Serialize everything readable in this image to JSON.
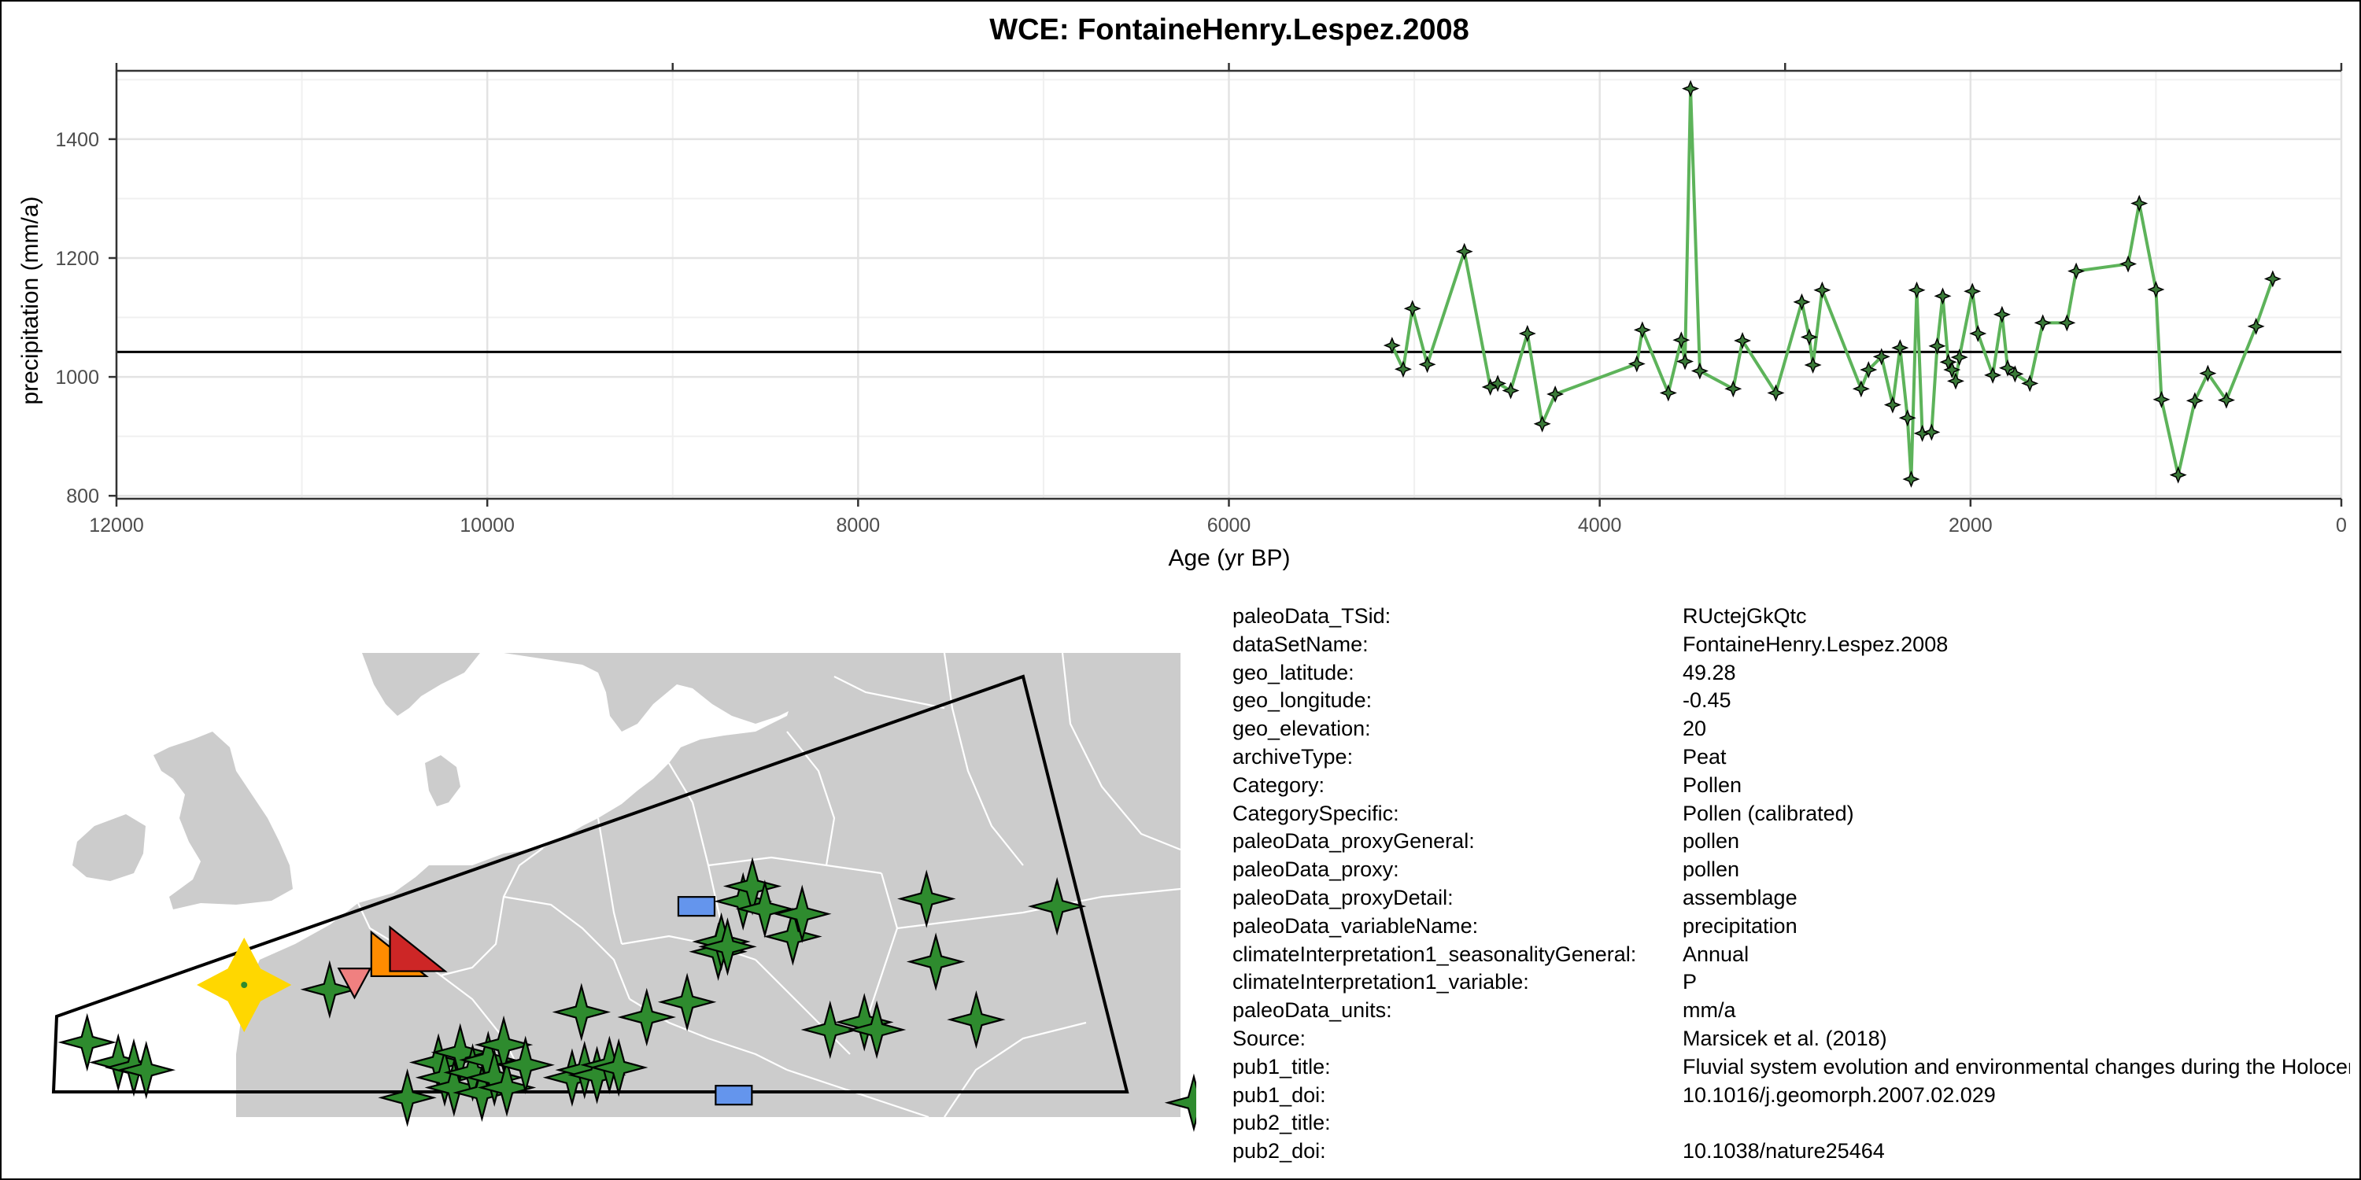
{
  "colors": {
    "series_line": "#5db35a",
    "point_fill": "#3a7a38",
    "land": "#cccccc",
    "border": "#ffffff",
    "green_star": "#2e8b2e",
    "yellow_star": "#ffd700",
    "orange": "#ff8c00",
    "red_tri": "#cd2626",
    "pink_tri": "#f08080",
    "blue_rect": "#6495ed"
  },
  "chart_data": {
    "type": "line",
    "title": "WCE: FontaineHenry.Lespez.2008",
    "xlabel": "Age (yr BP)",
    "ylabel": "precipitation (mm/a)",
    "xlim": [
      12000,
      0
    ],
    "ylim": [
      795,
      1515
    ],
    "x_reversed": true,
    "grid": true,
    "x_ticks": [
      12000,
      10000,
      8000,
      6000,
      4000,
      2000,
      0
    ],
    "x_tick_labels": [
      "12000",
      "10000",
      "8000",
      "6000",
      "4000",
      "2000",
      "0"
    ],
    "y_ticks": [
      800,
      1000,
      1200,
      1400
    ],
    "y_tick_labels": [
      "800",
      "1000",
      "1200",
      "1400"
    ],
    "mean_line": 1042,
    "series": [
      {
        "values": [
          {
            "x": 5120,
            "y": 1053
          },
          {
            "x": 5060,
            "y": 1013
          },
          {
            "x": 5010,
            "y": 1115
          },
          {
            "x": 4930,
            "y": 1021
          },
          {
            "x": 4730,
            "y": 1211
          },
          {
            "x": 4590,
            "y": 983
          },
          {
            "x": 4550,
            "y": 989
          },
          {
            "x": 4480,
            "y": 977
          },
          {
            "x": 4390,
            "y": 1073
          },
          {
            "x": 4310,
            "y": 921
          },
          {
            "x": 4240,
            "y": 971
          },
          {
            "x": 3800,
            "y": 1022
          },
          {
            "x": 3770,
            "y": 1079
          },
          {
            "x": 3630,
            "y": 973
          },
          {
            "x": 3560,
            "y": 1062
          },
          {
            "x": 3540,
            "y": 1026
          },
          {
            "x": 3510,
            "y": 1485
          },
          {
            "x": 3460,
            "y": 1010
          },
          {
            "x": 3280,
            "y": 980
          },
          {
            "x": 3230,
            "y": 1061
          },
          {
            "x": 3050,
            "y": 973
          },
          {
            "x": 2910,
            "y": 1126
          },
          {
            "x": 2870,
            "y": 1067
          },
          {
            "x": 2850,
            "y": 1020
          },
          {
            "x": 2800,
            "y": 1146
          },
          {
            "x": 2590,
            "y": 980
          },
          {
            "x": 2550,
            "y": 1012
          },
          {
            "x": 2480,
            "y": 1034
          },
          {
            "x": 2420,
            "y": 953
          },
          {
            "x": 2380,
            "y": 1049
          },
          {
            "x": 2340,
            "y": 931
          },
          {
            "x": 2320,
            "y": 828
          },
          {
            "x": 2290,
            "y": 1146
          },
          {
            "x": 2260,
            "y": 905
          },
          {
            "x": 2210,
            "y": 907
          },
          {
            "x": 2180,
            "y": 1052
          },
          {
            "x": 2150,
            "y": 1136
          },
          {
            "x": 2120,
            "y": 1025
          },
          {
            "x": 2100,
            "y": 1012
          },
          {
            "x": 2080,
            "y": 993
          },
          {
            "x": 2060,
            "y": 1033
          },
          {
            "x": 1990,
            "y": 1144
          },
          {
            "x": 1960,
            "y": 1073
          },
          {
            "x": 1880,
            "y": 1003
          },
          {
            "x": 1830,
            "y": 1105
          },
          {
            "x": 1800,
            "y": 1015
          },
          {
            "x": 1760,
            "y": 1005
          },
          {
            "x": 1680,
            "y": 989
          },
          {
            "x": 1610,
            "y": 1091
          },
          {
            "x": 1480,
            "y": 1091
          },
          {
            "x": 1430,
            "y": 1178
          },
          {
            "x": 1150,
            "y": 1190
          },
          {
            "x": 1090,
            "y": 1292
          },
          {
            "x": 1000,
            "y": 1147
          },
          {
            "x": 970,
            "y": 962
          },
          {
            "x": 880,
            "y": 835
          },
          {
            "x": 790,
            "y": 960
          },
          {
            "x": 720,
            "y": 1006
          },
          {
            "x": 620,
            "y": 961
          },
          {
            "x": 460,
            "y": 1085
          },
          {
            "x": 370,
            "y": 1165
          }
        ]
      }
    ]
  },
  "map": {
    "markers": [
      {
        "shape": "star4",
        "color": "green",
        "lon": -5.5,
        "lat": 47.0
      },
      {
        "shape": "star4",
        "color": "green",
        "lon": -4.5,
        "lat": 46.2
      },
      {
        "shape": "star4",
        "color": "green",
        "lon": -4.0,
        "lat": 46.0
      },
      {
        "shape": "star4",
        "color": "green",
        "lon": -3.6,
        "lat": 45.9
      },
      {
        "shape": "star4",
        "color": "green",
        "lon": 2.3,
        "lat": 49.1
      },
      {
        "shape": "star4",
        "color": "green",
        "lon": 4.8,
        "lat": 44.8
      },
      {
        "shape": "star4",
        "color": "green",
        "lon": 5.8,
        "lat": 46.2
      },
      {
        "shape": "star4",
        "color": "green",
        "lon": 6.0,
        "lat": 45.6
      },
      {
        "shape": "star4",
        "color": "green",
        "lon": 6.3,
        "lat": 45.2
      },
      {
        "shape": "star4",
        "color": "green",
        "lon": 6.5,
        "lat": 46.6
      },
      {
        "shape": "star4",
        "color": "green",
        "lon": 6.9,
        "lat": 45.8
      },
      {
        "shape": "star4",
        "color": "green",
        "lon": 7.2,
        "lat": 45.0
      },
      {
        "shape": "star4",
        "color": "green",
        "lon": 7.4,
        "lat": 46.3
      },
      {
        "shape": "star4",
        "color": "green",
        "lon": 7.6,
        "lat": 45.6
      },
      {
        "shape": "star4",
        "color": "green",
        "lon": 7.9,
        "lat": 46.9
      },
      {
        "shape": "star4",
        "color": "green",
        "lon": 8.0,
        "lat": 45.2
      },
      {
        "shape": "star4",
        "color": "green",
        "lon": 8.6,
        "lat": 46.1
      },
      {
        "shape": "star4",
        "color": "green",
        "lon": 10.1,
        "lat": 45.6
      },
      {
        "shape": "star4",
        "color": "green",
        "lon": 10.5,
        "lat": 45.9
      },
      {
        "shape": "star4",
        "color": "green",
        "lon": 10.9,
        "lat": 45.7
      },
      {
        "shape": "star4",
        "color": "green",
        "lon": 11.3,
        "lat": 46.1
      },
      {
        "shape": "star4",
        "color": "green",
        "lon": 11.6,
        "lat": 46.0
      },
      {
        "shape": "star4",
        "color": "green",
        "lon": 10.4,
        "lat": 48.2
      },
      {
        "shape": "star4",
        "color": "green",
        "lon": 12.5,
        "lat": 48.0
      },
      {
        "shape": "star4",
        "color": "green",
        "lon": 13.8,
        "lat": 48.6
      },
      {
        "shape": "star4",
        "color": "green",
        "lon": 14.8,
        "lat": 50.6
      },
      {
        "shape": "star4",
        "color": "green",
        "lon": 14.9,
        "lat": 51.0
      },
      {
        "shape": "star4",
        "color": "green",
        "lon": 15.1,
        "lat": 50.8
      },
      {
        "shape": "star4",
        "color": "green",
        "lon": 15.6,
        "lat": 52.6
      },
      {
        "shape": "star4",
        "color": "green",
        "lon": 15.9,
        "lat": 53.2
      },
      {
        "shape": "star4",
        "color": "green",
        "lon": 16.3,
        "lat": 52.3
      },
      {
        "shape": "star4",
        "color": "green",
        "lon": 17.2,
        "lat": 51.2
      },
      {
        "shape": "star4",
        "color": "green",
        "lon": 17.5,
        "lat": 52.1
      },
      {
        "shape": "star4",
        "color": "green",
        "lon": 18.4,
        "lat": 47.5
      },
      {
        "shape": "star4",
        "color": "green",
        "lon": 19.5,
        "lat": 47.8
      },
      {
        "shape": "star4",
        "color": "green",
        "lon": 19.9,
        "lat": 47.5
      },
      {
        "shape": "star4",
        "color": "green",
        "lon": 21.5,
        "lat": 52.7
      },
      {
        "shape": "star4",
        "color": "green",
        "lon": 21.8,
        "lat": 50.2
      },
      {
        "shape": "star4",
        "color": "green",
        "lon": 23.1,
        "lat": 47.9
      },
      {
        "shape": "star4",
        "color": "green",
        "lon": 25.7,
        "lat": 52.4
      },
      {
        "shape": "star4",
        "color": "green",
        "lon": 30.1,
        "lat": 44.6
      },
      {
        "shape": "star4",
        "color": "yellow",
        "lon": -0.45,
        "lat": 49.28
      },
      {
        "shape": "tri-right",
        "color": "orange",
        "lon": 4.4,
        "lat": 50.5
      },
      {
        "shape": "tri-right",
        "color": "red",
        "lon": 5.0,
        "lat": 50.7
      },
      {
        "shape": "tri-down",
        "color": "pink",
        "lon": 3.1,
        "lat": 49.4
      },
      {
        "shape": "rect",
        "color": "blue",
        "lon": 14.1,
        "lat": 52.4
      },
      {
        "shape": "rect",
        "color": "blue",
        "lon": 15.3,
        "lat": 44.9
      }
    ]
  },
  "metadata": [
    {
      "key": "paleoData_TSid:",
      "value": "RUctejGkQtc"
    },
    {
      "key": "dataSetName:",
      "value": "FontaineHenry.Lespez.2008"
    },
    {
      "key": "geo_latitude:",
      "value": "49.28"
    },
    {
      "key": "geo_longitude:",
      "value": "-0.45"
    },
    {
      "key": "geo_elevation:",
      "value": "20"
    },
    {
      "key": "archiveType:",
      "value": "Peat"
    },
    {
      "key": "Category:",
      "value": "Pollen"
    },
    {
      "key": "CategorySpecific:",
      "value": "Pollen (calibrated)"
    },
    {
      "key": "paleoData_proxyGeneral:",
      "value": "pollen"
    },
    {
      "key": "paleoData_proxy:",
      "value": "pollen"
    },
    {
      "key": "paleoData_proxyDetail:",
      "value": "assemblage"
    },
    {
      "key": "paleoData_variableName:",
      "value": "precipitation"
    },
    {
      "key": "climateInterpretation1_seasonalityGeneral:",
      "value": "Annual"
    },
    {
      "key": "climateInterpretation1_variable:",
      "value": "P"
    },
    {
      "key": "paleoData_units:",
      "value": "mm/a"
    },
    {
      "key": "Source:",
      "value": "Marsicek et al. (2018)"
    },
    {
      "key": "pub1_title:",
      "value": "Fluvial system evolution and environmental changes during the Holocene in the Mue valley (Western France)"
    },
    {
      "key": "pub1_doi:",
      "value": "10.1016/j.geomorph.2007.02.029"
    },
    {
      "key": "pub2_title:",
      "value": ""
    },
    {
      "key": "pub2_doi:",
      "value": "10.1038/nature25464"
    }
  ]
}
